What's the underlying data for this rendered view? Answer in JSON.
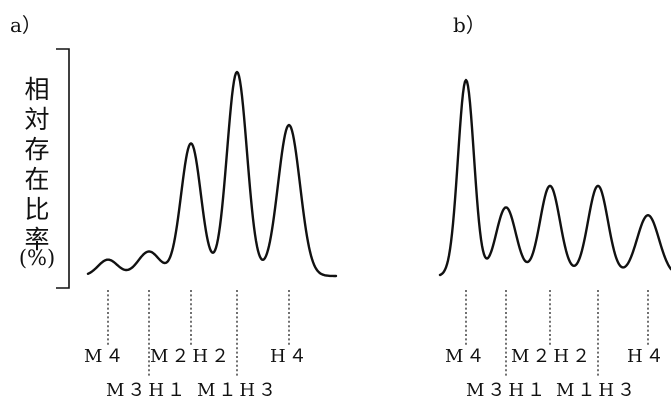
{
  "chart_data": [
    {
      "type": "line",
      "panel_label": "a）",
      "ylabel": [
        "相",
        "対",
        "存",
        "在",
        "比",
        "率",
        "(%)"
      ],
      "categories": [
        "M4",
        "M3H1",
        "M2H2",
        "M1H3",
        "H4"
      ],
      "category_labels": [
        "M４",
        "M３H１",
        "M２H２",
        "M１H３",
        "H４"
      ],
      "values": [
        8,
        12,
        65,
        100,
        74
      ],
      "ylim": [
        0,
        100
      ]
    },
    {
      "type": "line",
      "panel_label": "b）",
      "categories": [
        "M4",
        "M3H1",
        "M2H2",
        "M1H3",
        "H4"
      ],
      "category_labels": [
        "M４",
        "M３H１",
        "M２H２",
        "M１H３",
        "H４"
      ],
      "values": [
        100,
        35,
        46,
        46,
        31
      ],
      "ylim": [
        0,
        100
      ]
    }
  ]
}
